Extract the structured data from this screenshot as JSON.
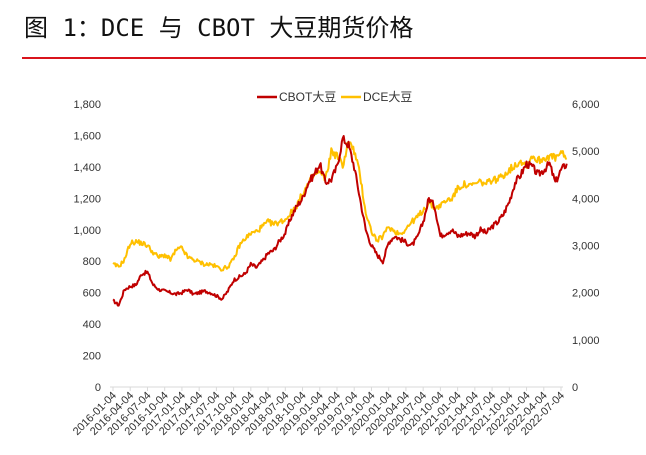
{
  "header": {
    "title": "图 1：DCE 与 CBOT 大豆期货价格"
  },
  "colors": {
    "divider": "#d9141c",
    "cbot": "#c00000",
    "dce": "#ffc000",
    "axis": "#d9d9d9",
    "text": "#333333"
  },
  "chart_data": {
    "type": "line",
    "title": "DCE 与 CBOT 大豆期货价格",
    "legend": [
      "CBOT大豆",
      "DCE大豆"
    ],
    "legend_position": "top",
    "grid": false,
    "y_left": {
      "label": "",
      "ticks": [
        "0",
        "200",
        "400",
        "600",
        "800",
        "1,000",
        "1,200",
        "1,400",
        "1,600",
        "1,800"
      ],
      "range": [
        0,
        1800
      ],
      "series": "CBOT大豆"
    },
    "y_right": {
      "label": "",
      "ticks": [
        "0",
        "1,000",
        "2,000",
        "3,000",
        "4,000",
        "5,000",
        "6,000"
      ],
      "range": [
        0,
        6000
      ],
      "series": "DCE大豆"
    },
    "x_ticks": [
      "2016-01-04",
      "2016-04-04",
      "2016-07-04",
      "2016-10-04",
      "2017-01-04",
      "2017-04-04",
      "2017-07-04",
      "2017-10-04",
      "2018-01-04",
      "2018-04-04",
      "2018-07-04",
      "2018-10-04",
      "2019-01-04",
      "2019-04-04",
      "2019-07-04",
      "2019-10-04",
      "2020-01-04",
      "2020-04-04",
      "2020-07-04",
      "2020-10-04",
      "2021-01-04",
      "2021-04-04",
      "2021-07-04",
      "2021-10-04",
      "2022-01-04",
      "2022-04-04",
      "2022-07-04"
    ],
    "x": [
      "2016-01",
      "2016-02",
      "2016-03",
      "2016-04",
      "2016-05",
      "2016-06",
      "2016-07",
      "2016-08",
      "2016-09",
      "2016-10",
      "2016-11",
      "2016-12",
      "2017-01",
      "2017-02",
      "2017-03",
      "2017-04",
      "2017-05",
      "2017-06",
      "2017-07",
      "2017-08",
      "2017-09",
      "2017-10",
      "2017-11",
      "2017-12",
      "2018-01",
      "2018-02",
      "2018-03",
      "2018-04",
      "2018-05",
      "2018-06",
      "2018-07",
      "2018-08",
      "2018-09",
      "2018-10",
      "2018-11",
      "2018-12",
      "2019-01",
      "2019-02",
      "2019-03",
      "2019-04",
      "2019-05",
      "2019-06",
      "2019-07",
      "2019-08",
      "2019-09",
      "2019-10",
      "2019-11",
      "2019-12",
      "2020-01",
      "2020-02",
      "2020-03",
      "2020-04",
      "2020-05",
      "2020-06",
      "2020-07",
      "2020-08",
      "2020-09",
      "2020-10",
      "2020-11",
      "2020-12",
      "2021-01",
      "2021-02",
      "2021-03",
      "2021-04",
      "2021-05",
      "2021-06",
      "2021-07",
      "2021-08",
      "2021-09",
      "2021-10",
      "2021-11",
      "2021-12",
      "2022-01",
      "2022-02",
      "2022-03",
      "2022-04",
      "2022-05",
      "2022-06",
      "2022-07",
      "2022-08"
    ],
    "series": [
      {
        "name": "CBOT大豆",
        "axis": "left",
        "values": [
          550,
          520,
          620,
          640,
          650,
          720,
          730,
          650,
          620,
          610,
          600,
          590,
          600,
          620,
          590,
          600,
          610,
          600,
          580,
          560,
          610,
          680,
          700,
          720,
          780,
          760,
          800,
          850,
          870,
          930,
          980,
          1080,
          1150,
          1200,
          1300,
          1350,
          1420,
          1300,
          1320,
          1400,
          1580,
          1540,
          1400,
          1200,
          1000,
          900,
          840,
          800,
          920,
          960,
          940,
          920,
          900,
          950,
          1050,
          1200,
          1150,
          960,
          980,
          1000,
          960,
          970,
          980,
          960,
          1000,
          980,
          1020,
          1050,
          1100,
          1180,
          1300,
          1350,
          1420,
          1400,
          1350,
          1380,
          1420,
          1300,
          1380,
          1420
        ]
      },
      {
        "name": "DCE大豆",
        "axis": "right",
        "values": [
          2600,
          2550,
          2700,
          3050,
          3080,
          3050,
          3000,
          2850,
          2750,
          2800,
          2700,
          2900,
          2950,
          2750,
          2700,
          2650,
          2600,
          2600,
          2550,
          2500,
          2550,
          2700,
          3000,
          3150,
          3250,
          3300,
          3400,
          3500,
          3450,
          3500,
          3550,
          3700,
          3850,
          4100,
          4300,
          4500,
          4550,
          4400,
          5000,
          4900,
          4700,
          5200,
          5000,
          4500,
          3700,
          3300,
          3100,
          3200,
          3400,
          3300,
          3250,
          3350,
          3500,
          3600,
          3750,
          3900,
          3800,
          3850,
          3950,
          4000,
          4200,
          4300,
          4250,
          4300,
          4350,
          4300,
          4400,
          4400,
          4500,
          4600,
          4700,
          4800,
          4700,
          4900,
          4800,
          4850,
          4900,
          4850,
          4950,
          4850
        ]
      }
    ]
  }
}
